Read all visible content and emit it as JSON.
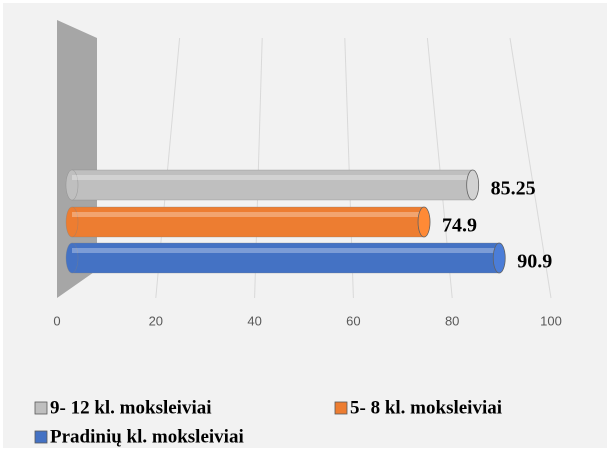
{
  "chart_data": {
    "type": "bar3d",
    "series": [
      {
        "name": "9- 12 kl. moksleiviai",
        "color": "#bfbfbf",
        "values": [
          85.25
        ]
      },
      {
        "name": "5- 8 kl. moksleiviai",
        "color": "#ed7d31",
        "values": [
          74.9
        ]
      },
      {
        "name": "Pradinių kl. moksleiviai",
        "color": "#4472c4",
        "values": [
          90.9
        ]
      }
    ],
    "categories": [
      null
    ],
    "xlim": [
      0,
      100
    ],
    "xticks": [
      0,
      20,
      40,
      60,
      80,
      100
    ],
    "grid": true,
    "legend": "bottom"
  }
}
